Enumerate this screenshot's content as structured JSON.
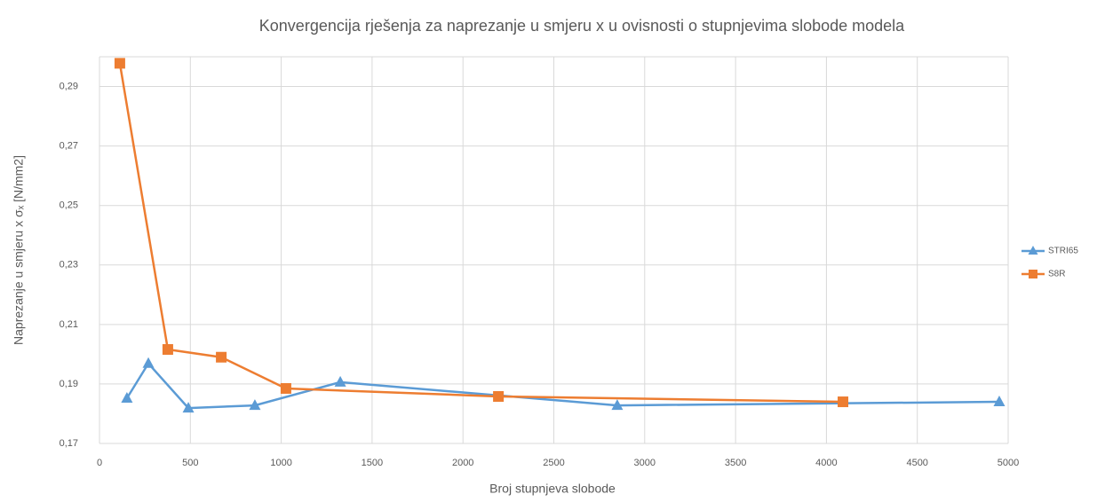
{
  "chart_data": {
    "type": "line",
    "title": "Konvergencija rješenja za naprezanje u smjeru x u ovisnosti o stupnjevima slobode modela",
    "x_label": "Broj stupnjeva slobode",
    "y_label": "Naprezanje u smjeru x σₓ [N/mm2]",
    "xlim": [
      0,
      5000
    ],
    "xticks": [
      0,
      500,
      1000,
      1500,
      2000,
      2500,
      3000,
      3500,
      4000,
      4500,
      5000
    ],
    "ylim": [
      0.17,
      0.3
    ],
    "yticks": [
      {
        "value": 0.17,
        "label": "0,17"
      },
      {
        "value": 0.19,
        "label": "0,19"
      },
      {
        "value": 0.21,
        "label": "0,21"
      },
      {
        "value": 0.23,
        "label": "0,23"
      },
      {
        "value": 0.25,
        "label": "0,25"
      },
      {
        "value": 0.27,
        "label": "0,27"
      },
      {
        "value": 0.29,
        "label": "0,29"
      }
    ],
    "grid": true,
    "legend": "right",
    "series": [
      {
        "name": "STRI65",
        "color": "#5b9bd5",
        "marker": "triangle",
        "x": [
          151,
          269,
          489,
          855,
          1325,
          2849,
          4951
        ],
        "values": [
          0.1852,
          0.1969,
          0.1819,
          0.1828,
          0.1906,
          0.1828,
          0.184
        ]
      },
      {
        "name": "S8R",
        "color": "#ed7d31",
        "marker": "square",
        "x": [
          112,
          376,
          670,
          1026,
          2195,
          4091
        ],
        "values": [
          0.2978,
          0.2016,
          0.199,
          0.1885,
          0.1858,
          0.184
        ]
      }
    ]
  }
}
